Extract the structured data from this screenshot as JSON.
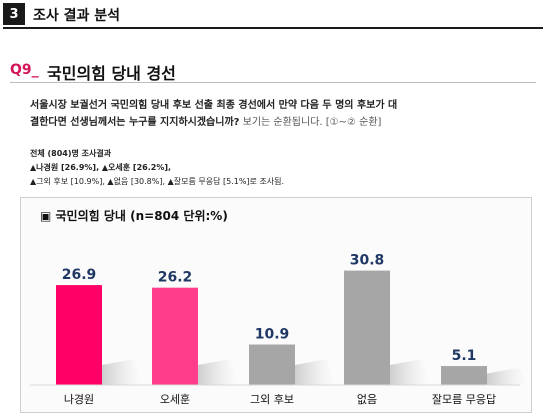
{
  "header": {
    "section_number": "3",
    "section_title": "조사 결과 분석"
  },
  "question": {
    "code": "Q9_",
    "title": "국민의힘 당내 경선",
    "text_line1": "서울시장 보궐선거 국민의힘 당내 후보 선출 최종 경선에서 만약 다음 두 명의 후보가 대",
    "text_line2": "결한다면 선생님께서는 누구를 지지하시겠습니까?",
    "note": " 보기는 순환됩니다. [①~② 순환]"
  },
  "summary": {
    "heading": "전체 (804)명 조사결과",
    "line1": "▲나경원 [26.9%], ▲오세훈 [26.2%],",
    "line2": "▲그외 후보 [10.9%], ▲없음 [30.8%], ▲잘모름 무응답 [5.1%]로 조사됨."
  },
  "chart_data": {
    "type": "bar",
    "title": "▣ 국민의힘 당내 (n=804 단위:%)",
    "categories": [
      "나경원",
      "오세훈",
      "그외 후보",
      "없음",
      "잘모름 무응답"
    ],
    "values": [
      26.9,
      26.2,
      10.9,
      30.8,
      5.1
    ],
    "value_labels": [
      "26.9",
      "26.2",
      "10.9",
      "30.8",
      "5.1"
    ],
    "colors": [
      "#ff0066",
      "#ff3d8b",
      "#a6a6a6",
      "#a6a6a6",
      "#a6a6a6"
    ],
    "label_color": "#1f3864",
    "ylim": [
      0,
      35
    ],
    "xlabel": "",
    "ylabel": "",
    "grid": false,
    "legend": "none"
  }
}
